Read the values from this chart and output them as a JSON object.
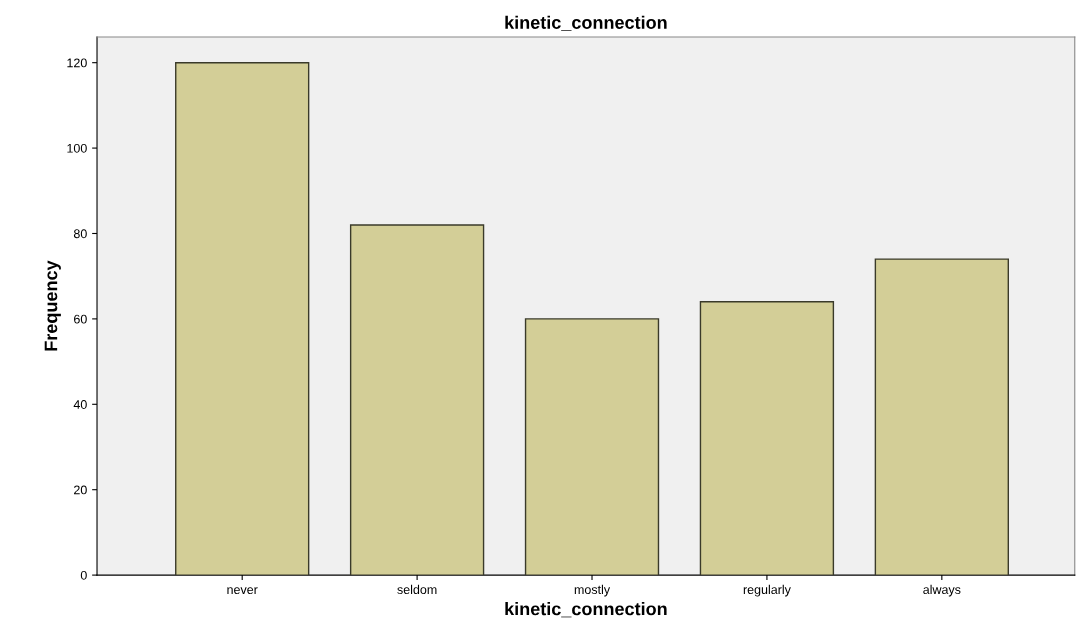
{
  "chart_data": {
    "type": "bar",
    "title": "kinetic_connection",
    "xlabel": "kinetic_connection",
    "ylabel": "Frequency",
    "categories": [
      "never",
      "seldom",
      "mostly",
      "regularly",
      "always"
    ],
    "values": [
      120,
      82,
      60,
      64,
      74
    ],
    "color": "#d3ce97",
    "ylim": [
      0,
      126
    ],
    "yticks": [
      0,
      20,
      40,
      60,
      80,
      100,
      120
    ],
    "grid": false
  }
}
